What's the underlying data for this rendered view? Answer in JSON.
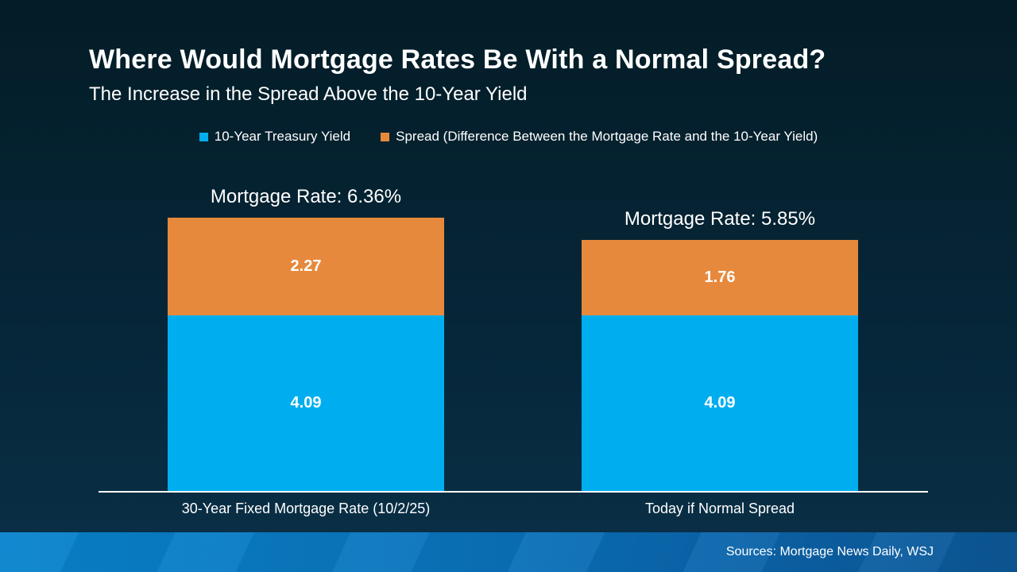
{
  "slide": {
    "title": "Where Would Mortgage Rates Be With a Normal Spread?",
    "subtitle": "The Increase in the Spread Above the 10-Year Yield",
    "source_note": "Sources: Mortgage News Daily, WSJ"
  },
  "colors": {
    "treasury_blue": "#00aeef",
    "spread_orange": "#e7893c",
    "background_top": "#031c27",
    "background_bottom": "#0a3048",
    "footer_left": "#0884ce",
    "footer_right": "#0c5796",
    "text": "#ffffff",
    "axis_line": "#ffffff"
  },
  "legend": {
    "items": [
      {
        "label": "10-Year Treasury Yield",
        "color": "#00aeef"
      },
      {
        "label": "Spread (Difference Between the Mortgage Rate and the 10-Year Yield)",
        "color": "#e7893c"
      }
    ]
  },
  "chart_data": {
    "type": "bar",
    "stacked": true,
    "title": "Where Would Mortgage Rates Be With a Normal Spread?",
    "subtitle": "The Increase in the Spread Above the 10-Year Yield",
    "categories": [
      "30-Year Fixed Mortgage Rate (10/2/25)",
      "Today if Normal Spread"
    ],
    "series": [
      {
        "name": "10-Year Treasury Yield",
        "color": "#00aeef",
        "values": [
          4.09,
          4.09
        ]
      },
      {
        "name": "Spread (Difference Between the Mortgage Rate and the 10-Year Yield)",
        "color": "#e7893c",
        "values": [
          2.27,
          1.76
        ]
      }
    ],
    "totals": [
      6.36,
      5.85
    ],
    "bar_total_labels": [
      "Mortgage Rate: 6.36%",
      "Mortgage Rate: 5.85%"
    ],
    "xlabel": "",
    "ylabel": "",
    "ylim": [
      0,
      6.36
    ],
    "grid": false,
    "legend_position": "top",
    "value_labels": "inside-center"
  }
}
